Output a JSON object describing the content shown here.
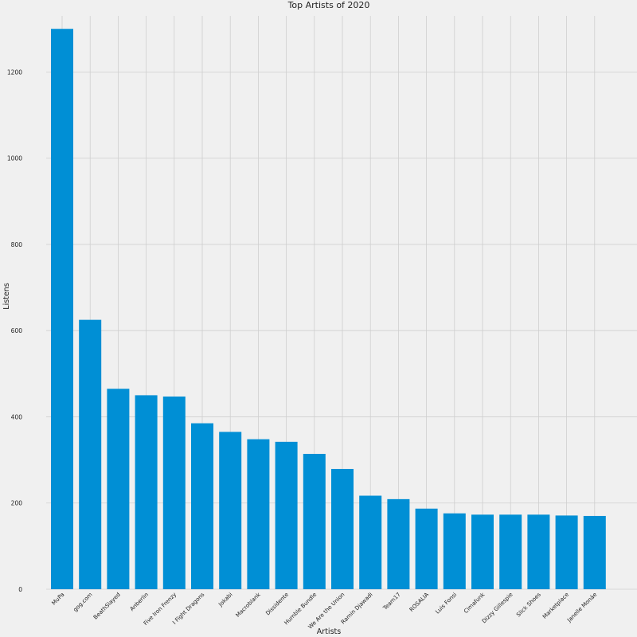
{
  "chart_data": {
    "type": "bar",
    "title": "Top Artists of 2020",
    "xlabel": "Artists",
    "ylabel": "Listens",
    "ylim": [
      0,
      1330
    ],
    "yticks": [
      0,
      200,
      400,
      600,
      800,
      1000,
      1200
    ],
    "grid": true,
    "bar_color": "#008fd5",
    "background": "#f0f0f0",
    "categories": [
      "MuPa",
      "gog.com",
      "BeathSlayed",
      "Anberlin",
      "Five Iron Frenzy",
      "I Fight Dragons",
      "Jokabi",
      "Macroblank",
      "Dissidente",
      "Humble Bundle",
      "We Are the Union",
      "Ramin Djawadi",
      "Team17",
      "ROSALIA",
      "Luis Fonsi",
      "Cimafunk",
      "Dizzy Gillespie",
      "Slick Shoes",
      "Marketplace",
      "Janelle Monáe"
    ],
    "values": [
      1300,
      625,
      465,
      450,
      447,
      385,
      365,
      348,
      342,
      314,
      279,
      217,
      209,
      187,
      176,
      173,
      173,
      173,
      171,
      170
    ]
  }
}
